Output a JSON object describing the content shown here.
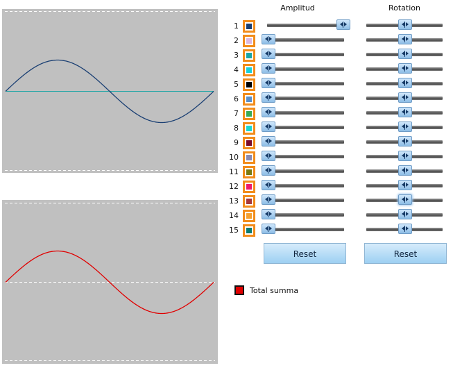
{
  "headers": {
    "amplitude": "Amplitud",
    "rotation": "Rotation"
  },
  "components": [
    {
      "num": "1",
      "color": "#1a3f73",
      "amplitude": 1,
      "rotation": 0.5
    },
    {
      "num": "2",
      "color": "#dcb8e0",
      "amplitude": 0,
      "rotation": 0.5
    },
    {
      "num": "3",
      "color": "#1aa5a5",
      "amplitude": 0,
      "rotation": 0.5
    },
    {
      "num": "4",
      "color": "#19d0d8",
      "amplitude": 0,
      "rotation": 0.5
    },
    {
      "num": "5",
      "color": "#000000",
      "amplitude": 0,
      "rotation": 0.5
    },
    {
      "num": "6",
      "color": "#5a8fc8",
      "amplitude": 0,
      "rotation": 0.5
    },
    {
      "num": "7",
      "color": "#3aaa55",
      "amplitude": 0,
      "rotation": 0.5
    },
    {
      "num": "8",
      "color": "#19d8d0",
      "amplitude": 0,
      "rotation": 0.5
    },
    {
      "num": "9",
      "color": "#7a0a2a",
      "amplitude": 0,
      "rotation": 0.5
    },
    {
      "num": "10",
      "color": "#8a8ab0",
      "amplitude": 0,
      "rotation": 0.5
    },
    {
      "num": "11",
      "color": "#7a7a10",
      "amplitude": 0,
      "rotation": 0.5
    },
    {
      "num": "12",
      "color": "#f01a6a",
      "amplitude": 0,
      "rotation": 0.5
    },
    {
      "num": "13",
      "color": "#a8383a",
      "amplitude": 0,
      "rotation": 0.5
    },
    {
      "num": "14",
      "color": "#f5a030",
      "amplitude": 0,
      "rotation": 0.5
    },
    {
      "num": "15",
      "color": "#0a7a70",
      "amplitude": 0,
      "rotation": 0.5
    }
  ],
  "buttons": {
    "reset_amplitude": "Reset",
    "reset_rotation": "Reset"
  },
  "legend": {
    "label": "Total summa",
    "color": "#e00000"
  },
  "colors": {
    "plot_background": "#c0c0c0",
    "component_wave": "#1a3f73",
    "baseline": "#1aa5a5",
    "sum_wave": "#e00000",
    "swatch_border": "#f28c1a"
  }
}
